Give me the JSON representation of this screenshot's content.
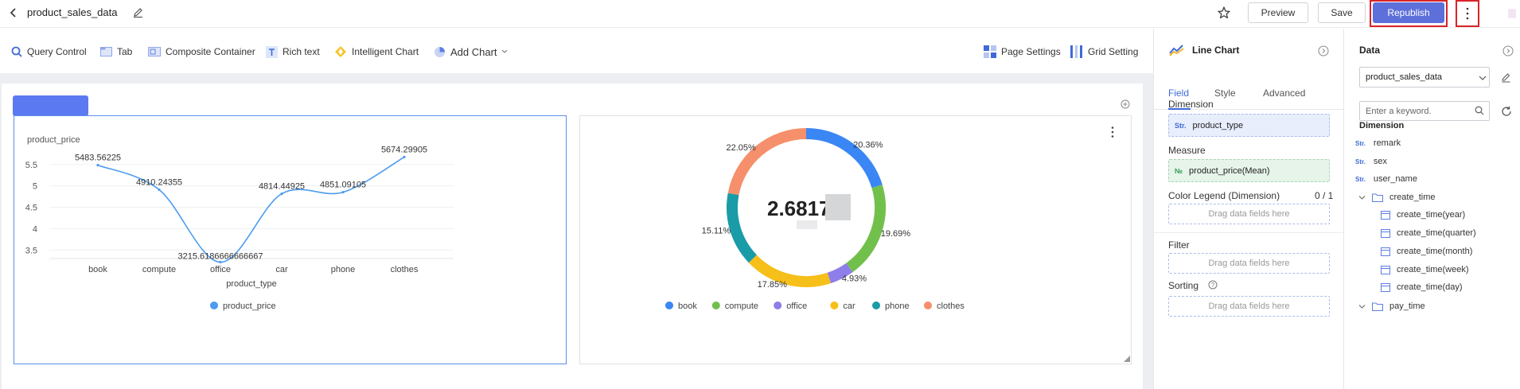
{
  "header": {
    "title": "product_sales_data",
    "preview_label": "Preview",
    "save_label": "Save",
    "republish_label": "Republish"
  },
  "toolbar": {
    "items": [
      {
        "label": "Query Control",
        "icon": "search-icon"
      },
      {
        "label": "Tab",
        "icon": "tab-icon"
      },
      {
        "label": "Composite Container",
        "icon": "container-icon"
      },
      {
        "label": "Rich text",
        "icon": "rich-text-icon"
      },
      {
        "label": "Intelligent Chart",
        "icon": "intelligent-chart-icon"
      },
      {
        "label": "Add  Chart",
        "icon": "pie-icon"
      }
    ],
    "page_settings_label": "Page Settings",
    "grid_setting_label": "Grid Setting"
  },
  "chart_data": [
    {
      "type": "line",
      "ylabel": "product_price",
      "xlabel": "product_type",
      "categories": [
        "book",
        "compute",
        "office",
        "car",
        "phone",
        "clothes"
      ],
      "series": [
        {
          "name": "product_price",
          "values": [
            5483.56225,
            4910.24355,
            3215.6186666666667,
            4814.44925,
            4851.09105,
            5674.29905
          ],
          "color": "#4c9cf0"
        }
      ],
      "data_labels": [
        "5483.56225",
        "4910.24355",
        "3215.6186666666667",
        "4814.44925",
        "4851.09105",
        "5674.29905"
      ],
      "yticks": [
        "3.5",
        "4",
        "4.5",
        "5",
        "5.5"
      ],
      "ylim": [
        3300,
        5700
      ],
      "legend_position": "bottom",
      "grid": true
    },
    {
      "type": "pie",
      "style": "donut",
      "center_value": "2.6817",
      "categories": [
        "book",
        "compute",
        "office",
        "car",
        "phone",
        "clothes"
      ],
      "values": [
        20.36,
        19.69,
        4.93,
        17.85,
        15.11,
        22.05
      ],
      "labels": [
        "20.36%",
        "19.69%",
        "4.93%",
        "17.85%",
        "15.11%",
        "22.05%"
      ],
      "colors": [
        "#3a86f4",
        "#72c04c",
        "#8e7ee9",
        "#f6bf19",
        "#1a9ba8",
        "#f68f6b"
      ],
      "legend_position": "bottom"
    }
  ],
  "config": {
    "chart_title": "Line Chart",
    "tabs": [
      "Field",
      "Style",
      "Advanced"
    ],
    "dimension_label": "Dimension",
    "dimension_tag": "Str.",
    "dimension_value": "product_type",
    "measure_label": "Measure",
    "measure_tag": "№",
    "measure_value": "product_price(Mean)",
    "color_legend_label": "Color Legend (Dimension)",
    "color_legend_count": "0 / 1",
    "drag_placeholder": "Drag data fields here",
    "filter_label": "Filter",
    "sorting_label": "Sorting"
  },
  "data_panel": {
    "title": "Data",
    "dataset": "product_sales_data",
    "search_placeholder": "Enter a keyword.",
    "section": "Dimension",
    "str_tag": "Str.",
    "fields": [
      "remark",
      "sex",
      "user_name"
    ],
    "folders": [
      {
        "name": "create_time",
        "children": [
          "create_time(year)",
          "create_time(quarter)",
          "create_time(month)",
          "create_time(week)",
          "create_time(day)"
        ]
      },
      {
        "name": "pay_time",
        "children": []
      }
    ]
  }
}
